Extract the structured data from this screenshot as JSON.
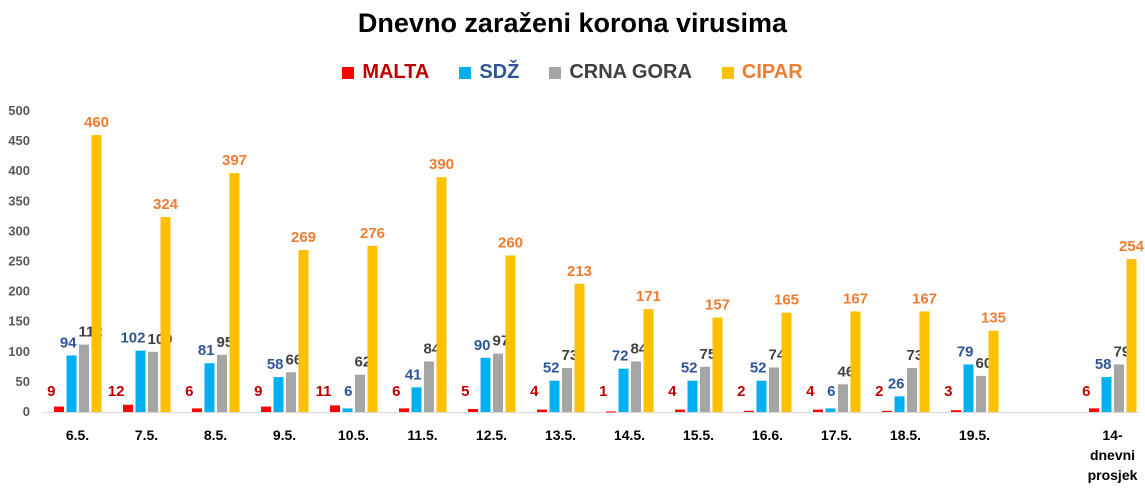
{
  "chart_data": {
    "type": "bar",
    "title": "Dnevno zaraženi korona virusima",
    "xlabel": "",
    "ylabel": "",
    "ylim": [
      0,
      500
    ],
    "yticks": [
      0,
      50,
      100,
      150,
      200,
      250,
      300,
      350,
      400,
      450,
      500
    ],
    "legend_position": "top-center",
    "grid": false,
    "categories": [
      "6.5.",
      "7.5.",
      "8.5.",
      "9.5.",
      "10.5.",
      "11.5.",
      "12.5.",
      "13.5.",
      "14.5.",
      "15.5.",
      "16.6.",
      "17.5.",
      "18.5.",
      "19.5.",
      "",
      "14-dnevni prosjek"
    ],
    "series": [
      {
        "name": "MALTA",
        "color": "#FF0000",
        "label_color": "#C00000",
        "values": [
          9,
          12,
          6,
          9,
          11,
          6,
          5,
          4,
          1,
          4,
          2,
          4,
          2,
          3,
          null,
          6
        ]
      },
      {
        "name": "SDŽ",
        "color": "#00B0F0",
        "label_color": "#2F5597",
        "values": [
          94,
          102,
          81,
          58,
          6,
          41,
          90,
          52,
          72,
          52,
          52,
          6,
          26,
          79,
          null,
          58
        ]
      },
      {
        "name": "CRNA GORA",
        "color": "#A5A5A5",
        "label_color": "#404040",
        "values": [
          112,
          100,
          95,
          66,
          62,
          84,
          97,
          73,
          84,
          75,
          74,
          46,
          73,
          60,
          null,
          79
        ]
      },
      {
        "name": "CIPAR",
        "color": "#FFC000",
        "label_color": "#ED7D31",
        "values": [
          460,
          324,
          397,
          269,
          276,
          390,
          260,
          213,
          171,
          157,
          165,
          167,
          167,
          135,
          null,
          254
        ]
      }
    ]
  }
}
